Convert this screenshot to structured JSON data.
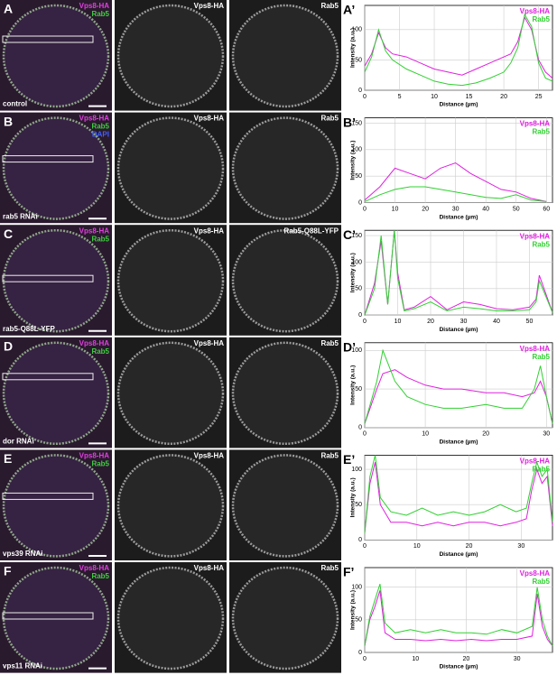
{
  "rows": [
    {
      "letter": "A",
      "merge_labels": [
        {
          "text": "Vps8-HA",
          "color": "#e040e0"
        },
        {
          "text": "Rab5",
          "color": "#40d040"
        }
      ],
      "condition": "control",
      "channel_labels": [
        "Vps8-HA",
        "Rab5"
      ]
    },
    {
      "letter": "B",
      "merge_labels": [
        {
          "text": "Vps8-HA",
          "color": "#e040e0"
        },
        {
          "text": "Rab5",
          "color": "#40d040"
        },
        {
          "text": "DAPI",
          "color": "#4060ff"
        }
      ],
      "condition": "rab5 RNAi",
      "channel_labels": [
        "Vps8-HA",
        "Rab5"
      ]
    },
    {
      "letter": "C",
      "merge_labels": [
        {
          "text": "Vps8-HA",
          "color": "#e040e0"
        },
        {
          "text": "Rab5",
          "color": "#40d040"
        }
      ],
      "condition": "rab5-Q88L-YFP",
      "channel_labels": [
        "Vps8-HA",
        "Rab5-Q88L-YFP"
      ]
    },
    {
      "letter": "D",
      "merge_labels": [
        {
          "text": "Vps8-HA",
          "color": "#e040e0"
        },
        {
          "text": "Rab5",
          "color": "#40d040"
        }
      ],
      "condition": "dor RNAi",
      "channel_labels": [
        "Vps8-HA",
        "Rab5"
      ]
    },
    {
      "letter": "E",
      "merge_labels": [
        {
          "text": "Vps8-HA",
          "color": "#e040e0"
        },
        {
          "text": "Rab5",
          "color": "#40d040"
        }
      ],
      "condition": "vps39 RNAi",
      "channel_labels": [
        "Vps8-HA",
        "Rab5"
      ]
    },
    {
      "letter": "F",
      "merge_labels": [
        {
          "text": "Vps8-HA",
          "color": "#e040e0"
        },
        {
          "text": "Rab5",
          "color": "#40d040"
        }
      ],
      "condition": "vps11 RNAi",
      "channel_labels": [
        "Vps8-HA",
        "Rab5"
      ]
    }
  ],
  "chart_data": [
    {
      "type": "line",
      "panel_label": "A’",
      "x_label": "Distance (µm)",
      "y_label": "Intensity (a.u.)",
      "xlim": [
        0,
        27
      ],
      "xticks": [
        0,
        5,
        10,
        15,
        20,
        25
      ],
      "ylim": [
        0,
        140
      ],
      "yticks": [
        0,
        50,
        100
      ],
      "grid": true,
      "x": [
        0,
        1,
        2,
        3,
        4,
        6,
        8,
        10,
        12,
        14,
        16,
        18,
        20,
        21,
        22,
        23,
        24,
        25,
        26,
        27
      ],
      "series": [
        {
          "name": "Vps8-HA",
          "color": "#e020e0",
          "values": [
            40,
            60,
            95,
            70,
            60,
            55,
            45,
            35,
            30,
            25,
            35,
            45,
            55,
            60,
            80,
            120,
            100,
            50,
            30,
            20
          ]
        },
        {
          "name": "Rab5",
          "color": "#30d030",
          "values": [
            30,
            55,
            100,
            65,
            50,
            35,
            25,
            15,
            10,
            8,
            12,
            20,
            30,
            45,
            70,
            125,
            105,
            45,
            20,
            15
          ]
        }
      ]
    },
    {
      "type": "line",
      "panel_label": "B’",
      "x_label": "Distance (µm)",
      "y_label": "Intensity (a.u.)",
      "xlim": [
        0,
        62
      ],
      "xticks": [
        0,
        10,
        20,
        30,
        40,
        50,
        60
      ],
      "ylim": [
        0,
        160
      ],
      "yticks": [
        0,
        50,
        100,
        150
      ],
      "grid": true,
      "x": [
        0,
        5,
        10,
        15,
        20,
        25,
        30,
        35,
        40,
        45,
        50,
        55,
        60
      ],
      "series": [
        {
          "name": "Vps8-HA",
          "color": "#e020e0",
          "values": [
            5,
            30,
            65,
            55,
            45,
            65,
            75,
            55,
            40,
            25,
            20,
            8,
            2
          ]
        },
        {
          "name": "Rab5",
          "color": "#30d030",
          "values": [
            2,
            15,
            25,
            30,
            30,
            25,
            20,
            15,
            10,
            8,
            15,
            5,
            2
          ]
        }
      ]
    },
    {
      "type": "line",
      "panel_label": "C’",
      "x_label": "Distance (µm)",
      "y_label": "Intensity (a.u.)",
      "xlim": [
        0,
        57
      ],
      "xticks": [
        0,
        10,
        20,
        30,
        40,
        50
      ],
      "ylim": [
        0,
        160
      ],
      "yticks": [
        0,
        50,
        100,
        150
      ],
      "grid": true,
      "x": [
        0,
        3,
        5,
        7,
        9,
        10,
        12,
        15,
        20,
        25,
        30,
        35,
        40,
        45,
        50,
        52,
        53,
        55,
        57
      ],
      "series": [
        {
          "name": "Vps8-HA",
          "color": "#e020e0",
          "values": [
            0,
            60,
            140,
            20,
            160,
            80,
            10,
            15,
            35,
            10,
            25,
            20,
            12,
            10,
            15,
            30,
            75,
            40,
            5
          ]
        },
        {
          "name": "Rab5",
          "color": "#30d030",
          "values": [
            0,
            50,
            150,
            20,
            160,
            70,
            8,
            12,
            25,
            8,
            15,
            12,
            8,
            8,
            10,
            25,
            65,
            35,
            5
          ]
        }
      ]
    },
    {
      "type": "line",
      "panel_label": "D’",
      "x_label": "Distance (µm)",
      "y_label": "Intensity (a.u.)",
      "xlim": [
        0,
        31
      ],
      "xticks": [
        0,
        10,
        20,
        30
      ],
      "ylim": [
        0,
        110
      ],
      "yticks": [
        0,
        50,
        100
      ],
      "grid": true,
      "x": [
        0,
        2,
        3,
        5,
        7,
        10,
        13,
        16,
        20,
        23,
        26,
        28,
        29,
        30,
        31
      ],
      "series": [
        {
          "name": "Vps8-HA",
          "color": "#e020e0",
          "values": [
            5,
            50,
            70,
            75,
            65,
            55,
            50,
            50,
            45,
            45,
            40,
            45,
            60,
            40,
            5
          ]
        },
        {
          "name": "Rab5",
          "color": "#30d030",
          "values": [
            5,
            60,
            100,
            60,
            40,
            30,
            25,
            25,
            30,
            25,
            25,
            50,
            80,
            40,
            5
          ]
        }
      ]
    },
    {
      "type": "line",
      "panel_label": "E’",
      "x_label": "Distance (µm)",
      "y_label": "Intensity (a.u.)",
      "xlim": [
        0,
        36
      ],
      "xticks": [
        0,
        10,
        20,
        30
      ],
      "ylim": [
        0,
        120
      ],
      "yticks": [
        0,
        50,
        100
      ],
      "grid": true,
      "x": [
        0,
        1,
        2,
        3,
        5,
        8,
        11,
        14,
        17,
        20,
        23,
        26,
        29,
        31,
        32,
        33,
        34,
        35,
        36
      ],
      "series": [
        {
          "name": "Vps8-HA",
          "color": "#e020e0",
          "values": [
            10,
            80,
            110,
            50,
            25,
            25,
            20,
            25,
            20,
            25,
            25,
            20,
            25,
            30,
            70,
            100,
            80,
            90,
            20
          ]
        },
        {
          "name": "Rab5",
          "color": "#30d030",
          "values": [
            10,
            90,
            120,
            60,
            40,
            35,
            45,
            35,
            40,
            35,
            40,
            50,
            40,
            45,
            80,
            110,
            90,
            100,
            25
          ]
        }
      ]
    },
    {
      "type": "line",
      "panel_label": "F’",
      "x_label": "Distance (µm)",
      "y_label": "Intensity (a.u.)",
      "xlim": [
        0,
        37
      ],
      "xticks": [
        0,
        10,
        20,
        30
      ],
      "ylim": [
        0,
        130
      ],
      "yticks": [
        0,
        50,
        100
      ],
      "grid": true,
      "x": [
        0,
        1,
        2,
        3,
        4,
        6,
        9,
        12,
        15,
        18,
        21,
        24,
        27,
        30,
        33,
        34,
        35,
        36,
        37
      ],
      "series": [
        {
          "name": "Vps8-HA",
          "color": "#e020e0",
          "values": [
            10,
            50,
            70,
            95,
            30,
            20,
            20,
            18,
            20,
            18,
            20,
            18,
            20,
            20,
            25,
            90,
            40,
            20,
            10
          ]
        },
        {
          "name": "Rab5",
          "color": "#30d030",
          "values": [
            10,
            55,
            80,
            105,
            45,
            30,
            35,
            30,
            35,
            30,
            30,
            28,
            35,
            30,
            40,
            100,
            50,
            25,
            10
          ]
        }
      ]
    }
  ]
}
